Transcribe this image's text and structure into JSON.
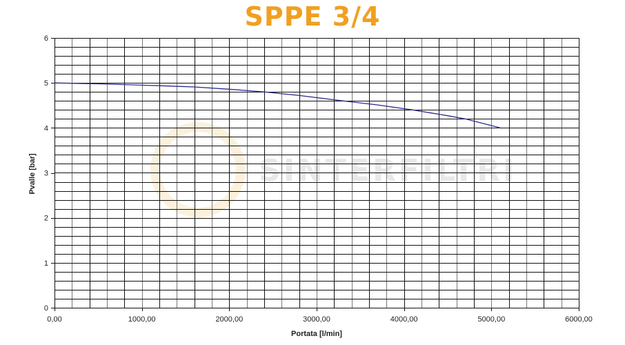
{
  "title": "SPPE 3/4",
  "watermark": "SINTERFILTRI",
  "colors": {
    "title": "#f0a020",
    "curve": "#2a2a8a",
    "grid": "#000000"
  },
  "chart_data": {
    "type": "line",
    "title": "SPPE 3/4",
    "xlabel": "Portata [l/min]",
    "ylabel": "Pvalle [bar]",
    "xlim": [
      0,
      6000
    ],
    "ylim": [
      0,
      6
    ],
    "x_ticks": [
      "0,00",
      "1000,00",
      "2000,00",
      "3000,00",
      "4000,00",
      "5000,00",
      "6000,00"
    ],
    "y_ticks": [
      "0",
      "1",
      "2",
      "3",
      "4",
      "5",
      "6"
    ],
    "grid": true,
    "grid_x_step": 200,
    "grid_y_step": 0.2,
    "series": [
      {
        "name": "SPPE 3/4",
        "x": [
          0,
          500,
          1000,
          1600,
          2000,
          2400,
          2800,
          3300,
          3700,
          4100,
          4500,
          4700,
          5100
        ],
        "y": [
          5.0,
          4.98,
          4.95,
          4.91,
          4.86,
          4.8,
          4.72,
          4.6,
          4.51,
          4.4,
          4.27,
          4.2,
          4.0
        ]
      }
    ]
  }
}
